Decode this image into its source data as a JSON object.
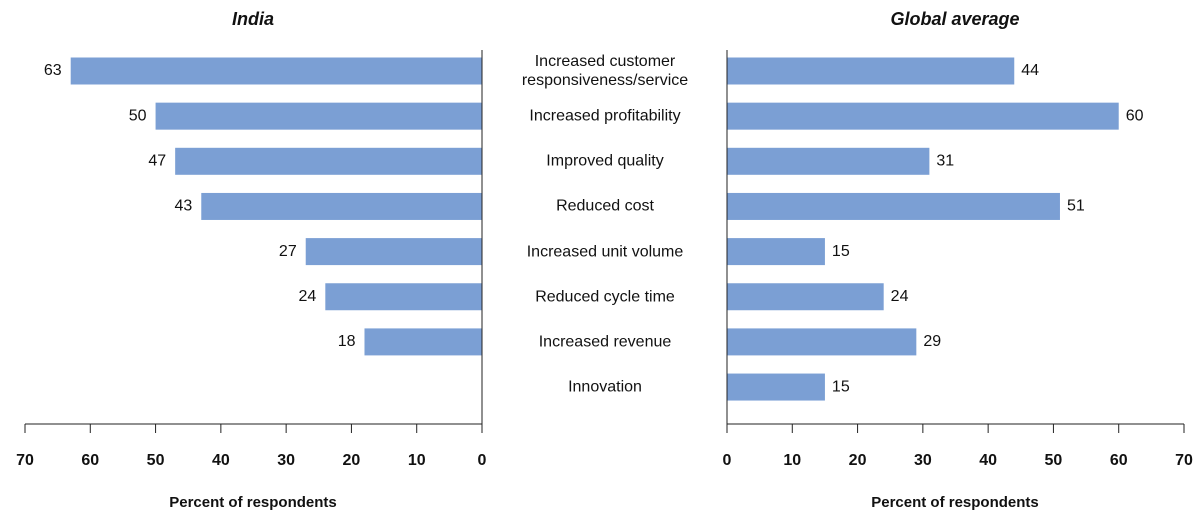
{
  "chart_data": [
    {
      "type": "bar",
      "orientation": "horizontal",
      "title": "India",
      "categories": [
        "Increased customer responsiveness/service",
        "Increased profitability",
        "Improved quality",
        "Reduced cost",
        "Increased unit volume",
        "Reduced cycle time",
        "Increased revenue",
        "Innovation"
      ],
      "values": [
        63,
        50,
        47,
        43,
        27,
        24,
        18,
        null
      ],
      "color": "#7b9fd4",
      "xlim": [
        70,
        0
      ],
      "xticks": [
        70,
        60,
        50,
        40,
        30,
        20,
        10,
        0
      ],
      "xlabel": "Percent of respondents"
    },
    {
      "type": "bar",
      "orientation": "horizontal",
      "title": "Global average",
      "values": [
        44,
        60,
        31,
        51,
        15,
        24,
        29,
        15
      ],
      "color": "#7b9fd4",
      "xlim": [
        0,
        70
      ],
      "xticks": [
        0,
        10,
        20,
        30,
        40,
        50,
        60,
        70
      ],
      "xlabel": "Percent of respondents"
    }
  ]
}
